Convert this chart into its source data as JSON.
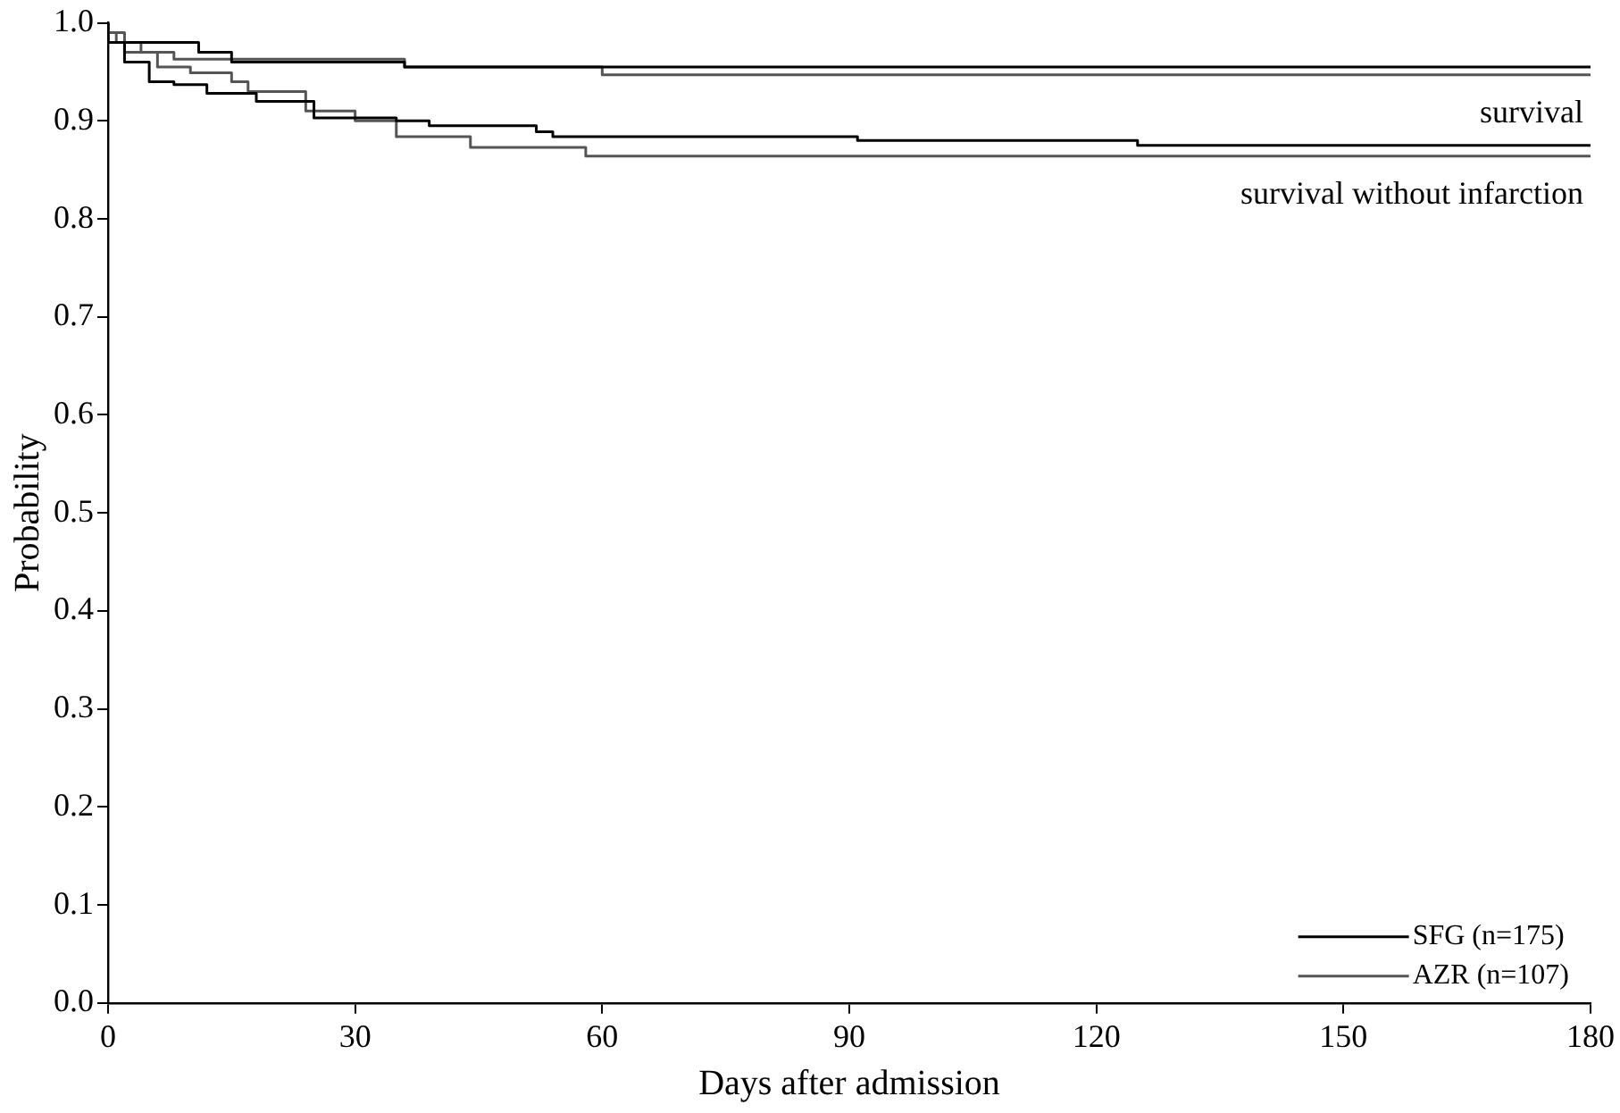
{
  "chart_data": {
    "type": "step",
    "xlabel": "Days after admission",
    "ylabel": "Probability",
    "xlim": [
      0,
      180
    ],
    "xticks": [
      0,
      30,
      60,
      90,
      120,
      150,
      180
    ],
    "ylim": [
      0,
      1.0
    ],
    "yticks": [
      {
        "value": 0,
        "label": "0.0"
      },
      0.1,
      0.2,
      0.3,
      0.4,
      0.5,
      0.6,
      0.7,
      0.8,
      0.9,
      {
        "value": 1,
        "label": "1.0"
      }
    ],
    "grid": false,
    "legend": "bottom right",
    "series": [
      {
        "name": "SFG (n=175)",
        "color": "#000000",
        "x": [
          0,
          11,
          15,
          36,
          125,
          180
        ],
        "values": [
          1.0,
          0.98,
          0.97,
          0.96,
          0.955,
          0.955
        ]
      },
      {
        "name": "AZR (n=107)",
        "color": "#555555",
        "x": [
          0,
          1,
          4,
          8,
          36,
          60,
          132,
          180
        ],
        "values": [
          1.0,
          0.99,
          0.98,
          0.97,
          0.963,
          0.955,
          0.947,
          0.947
        ]
      },
      {
        "color": "#000000",
        "x": [
          0,
          2,
          5,
          8,
          12,
          18,
          25,
          35,
          39,
          52,
          54,
          91,
          125,
          132,
          180
        ],
        "values": [
          1.0,
          0.98,
          0.96,
          0.94,
          0.937,
          0.928,
          0.92,
          0.903,
          0.9,
          0.895,
          0.889,
          0.884,
          0.88,
          0.875,
          0.875
        ]
      },
      {
        "color": "#555555",
        "x": [
          0,
          2,
          6,
          10,
          15,
          17,
          24,
          30,
          35,
          44,
          58,
          60,
          180
        ],
        "values": [
          1.0,
          0.99,
          0.97,
          0.955,
          0.949,
          0.94,
          0.93,
          0.91,
          0.9,
          0.884,
          0.873,
          0.864,
          0.864
        ]
      }
    ],
    "annotations": [
      "survival",
      "survival without infarction"
    ]
  }
}
